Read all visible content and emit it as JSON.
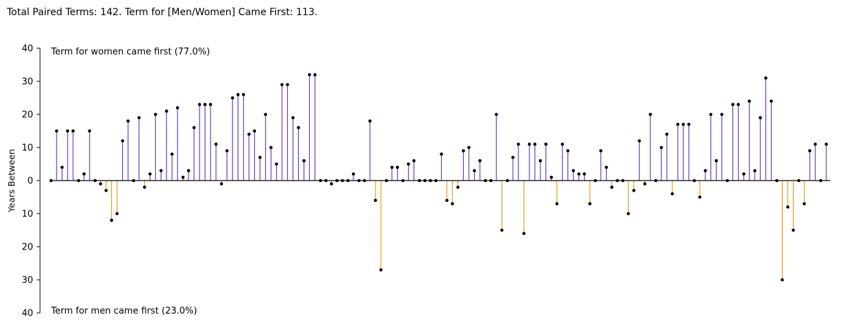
{
  "chart_data": {
    "type": "stem",
    "title": "Total Paired Terms: 142. Term for [Men/Women] Came First: 113.",
    "xlabel": "",
    "ylabel": "Years Between",
    "ylim": [
      -40,
      40
    ],
    "ytick_values": [
      40,
      30,
      20,
      10,
      0,
      -10,
      -20,
      -30,
      -40
    ],
    "ytick_labels": [
      "40",
      "30",
      "20",
      "10",
      "0",
      "10",
      "20",
      "30",
      "40"
    ],
    "annotation_top": "Term for women came first (77.0%)",
    "annotation_bottom": "Term for men came first (23.0%)",
    "colors": {
      "positive": "#6a3fb5",
      "negative": "#e8a020",
      "marker": "#000000",
      "axis": "#000000"
    },
    "values": [
      0,
      15,
      4,
      15,
      15,
      0,
      2,
      15,
      0,
      -1,
      -3,
      -12,
      -10,
      12,
      18,
      0,
      19,
      -2,
      2,
      20,
      3,
      21,
      8,
      22,
      1,
      3,
      16,
      23,
      23,
      23,
      11,
      -1,
      9,
      25,
      26,
      26,
      14,
      15,
      7,
      20,
      10,
      5,
      29,
      29,
      19,
      16,
      6,
      32,
      32,
      0,
      0,
      -1,
      0,
      0,
      0,
      2,
      0,
      0,
      18,
      -6,
      -27,
      0,
      4,
      4,
      0,
      5,
      6,
      0,
      0,
      0,
      0,
      8,
      -6,
      -7,
      -2,
      9,
      10,
      3,
      6,
      0,
      0,
      20,
      -15,
      0,
      7,
      11,
      -16,
      11,
      11,
      6,
      11,
      1,
      -7,
      11,
      9,
      3,
      2,
      2,
      -7,
      0,
      9,
      4,
      -2,
      0,
      0,
      -10,
      -3,
      12,
      -1,
      20,
      0,
      10,
      14,
      -4,
      17,
      17,
      17,
      0,
      -5,
      3,
      20,
      6,
      20,
      0,
      23,
      23,
      2,
      24,
      3,
      19,
      31,
      24,
      0,
      -30,
      -8,
      -15,
      0,
      -7,
      9,
      11,
      0,
      11
    ]
  }
}
